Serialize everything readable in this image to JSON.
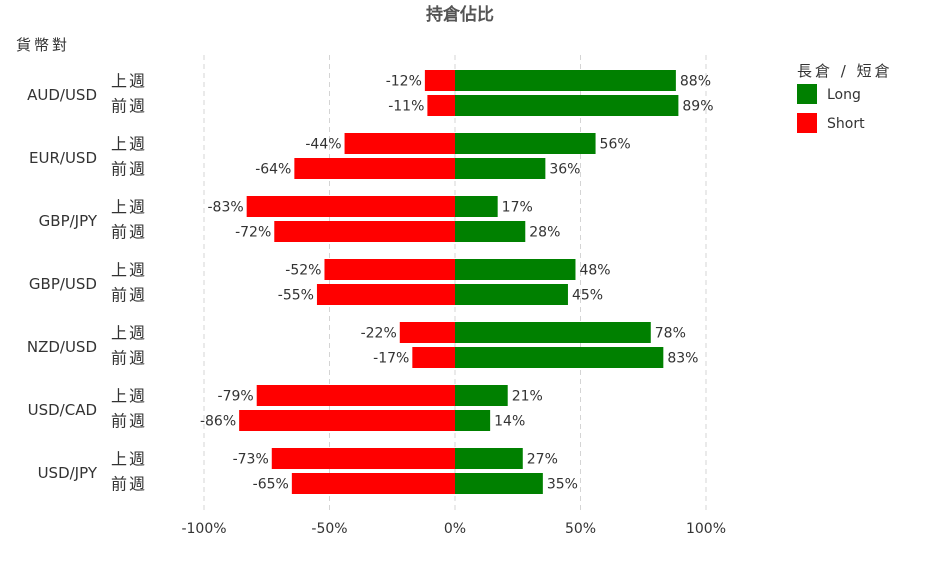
{
  "chart_data": {
    "type": "bar",
    "orientation": "horizontal",
    "title": "持倉佔比",
    "ylabel": "貨幣對",
    "categories": [
      "AUD/USD",
      "EUR/USD",
      "GBP/JPY",
      "GBP/USD",
      "NZD/USD",
      "USD/CAD",
      "USD/JPY"
    ],
    "periods": [
      "上週",
      "前週"
    ],
    "legend_title": "長倉 / 短倉",
    "legend_position": "top-right",
    "xlim": [
      -100,
      100
    ],
    "x_ticks": [
      -100,
      -50,
      0,
      50,
      100
    ],
    "x_tick_labels": [
      "-100%",
      "-50%",
      "0%",
      "50%",
      "100%"
    ],
    "grid": "vertical-dashed",
    "series": [
      {
        "name": "Long",
        "color": "#008000",
        "values": [
          [
            88,
            89
          ],
          [
            56,
            36
          ],
          [
            17,
            28
          ],
          [
            48,
            45
          ],
          [
            78,
            83
          ],
          [
            21,
            14
          ],
          [
            27,
            35
          ]
        ],
        "labels": [
          [
            "88%",
            "89%"
          ],
          [
            "56%",
            "36%"
          ],
          [
            "17%",
            "28%"
          ],
          [
            "48%",
            "45%"
          ],
          [
            "78%",
            "83%"
          ],
          [
            "21%",
            "14%"
          ],
          [
            "27%",
            "35%"
          ]
        ]
      },
      {
        "name": "Short",
        "color": "#ff0000",
        "values": [
          [
            -12,
            -11
          ],
          [
            -44,
            -64
          ],
          [
            -83,
            -72
          ],
          [
            -52,
            -55
          ],
          [
            -22,
            -17
          ],
          [
            -79,
            -86
          ],
          [
            -73,
            -65
          ]
        ],
        "labels": [
          [
            "-12%",
            "-11%"
          ],
          [
            "-44%",
            "-64%"
          ],
          [
            "-83%",
            "-72%"
          ],
          [
            "-52%",
            "-55%"
          ],
          [
            "-22%",
            "-17%"
          ],
          [
            "-79%",
            "-86%"
          ],
          [
            "-73%",
            "-65%"
          ]
        ]
      }
    ]
  }
}
